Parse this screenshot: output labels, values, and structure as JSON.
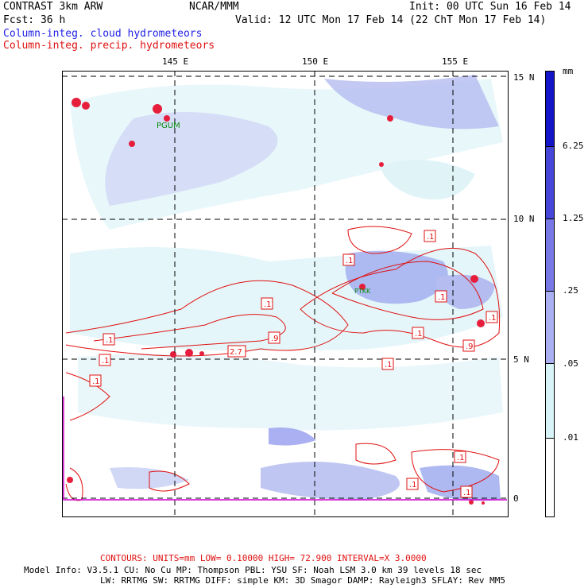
{
  "header": {
    "title": "CONTRAST  3km ARW",
    "center": "NCAR/MMM",
    "init": "Init: 00 UTC Sun 16 Feb 14",
    "fcst": "Fcst:   36 h",
    "valid": "Valid: 12 UTC Mon 17 Feb 14 (22 ChT Mon 17 Feb 14)",
    "legend_cloud": "Column-integ. cloud hydrometeors",
    "legend_precip": "Column-integ. precip. hydrometeors"
  },
  "map": {
    "lon_labels": [
      "145 E",
      "150 E",
      "155 E"
    ],
    "lat_labels": [
      "15 N",
      "10 N",
      "5 N",
      "0"
    ],
    "station": "PGUM",
    "station2": "PTKK",
    "contour_labels": [
      ".1",
      ".1",
      ".1",
      ".1",
      ".9",
      "2.7",
      ".1",
      ".1",
      ".1",
      ".9",
      ".1",
      ".1",
      ".1",
      ".1",
      ".1",
      ".1"
    ]
  },
  "colorbar": {
    "unit": "mm",
    "labels": [
      "6.25",
      "1.25",
      ".25",
      ".05",
      ".01"
    ],
    "colors": [
      "#1414c8",
      "#4646d8",
      "#7878e6",
      "#aab0f2",
      "#d8f4f8",
      "#ffffff"
    ]
  },
  "footer": {
    "contours": "CONTOURS:  UNITS=mm  LOW= 0.10000     HIGH=  72.900     INTERVAL=X  3.0000",
    "model_line1": "Model Info: V3.5.1    CU: No Cu    MP: Thompson    PBL: YSU     SF: Noah LSM    3.0 km   39 levels   18 sec",
    "model_line2": "LW: RRTMG   SW: RRTMG  DIFF: simple KM: 3D Smagor DAMP: Rayleigh3  SFLAY: Rev MM5"
  }
}
